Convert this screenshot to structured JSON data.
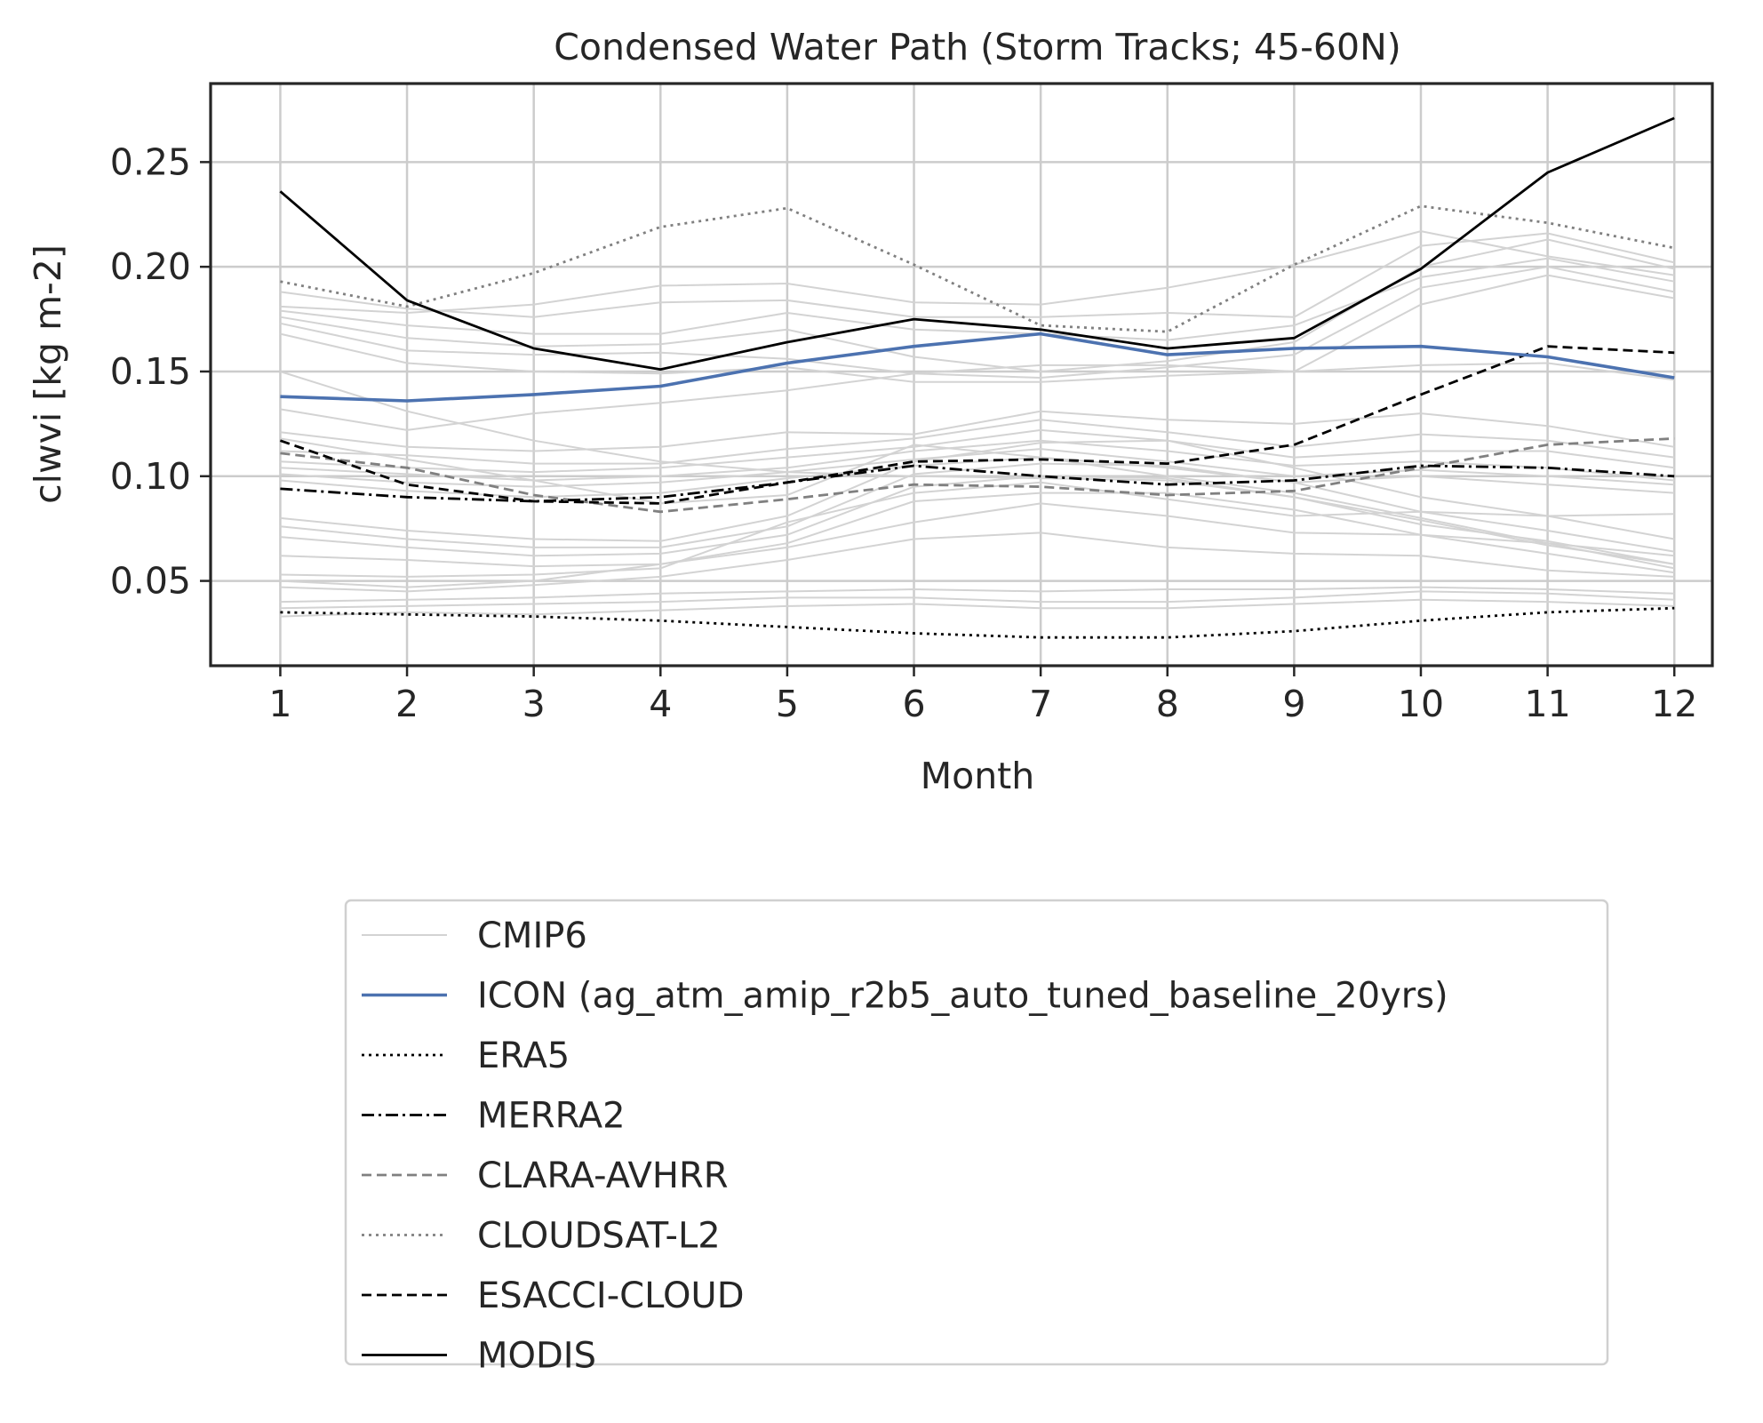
{
  "chart_data": {
    "type": "line",
    "title": "Condensed Water Path (Storm Tracks; 45-60N)",
    "xlabel": "Month",
    "ylabel": "clwvi [kg m-2]",
    "x": [
      1,
      2,
      3,
      4,
      5,
      6,
      7,
      8,
      9,
      10,
      11,
      12
    ],
    "x_ticks": [
      "1",
      "2",
      "3",
      "4",
      "5",
      "6",
      "7",
      "8",
      "9",
      "10",
      "11",
      "12"
    ],
    "y_ticks": [
      "0.05",
      "0.10",
      "0.15",
      "0.20",
      "0.25"
    ],
    "xlim": [
      0.45,
      12.3
    ],
    "ylim": [
      0.0095,
      0.2875
    ],
    "grid": true,
    "legend_position": "below plot",
    "series": [
      {
        "name": "CMIP6",
        "color": "#d3d3d3",
        "dash": "solid",
        "values": [
          0.188,
          0.18,
          0.176,
          0.183,
          0.184,
          0.176,
          0.176,
          0.178,
          0.176,
          0.21,
          0.216,
          0.202
        ]
      },
      {
        "name": "ICON (ag_atm_amip_r2b5_auto_tuned_baseline_20yrs)",
        "color": "#4c72b0",
        "dash": "solid",
        "values": [
          0.138,
          0.136,
          0.139,
          0.143,
          0.154,
          0.162,
          0.168,
          0.158,
          0.161,
          0.162,
          0.157,
          0.147
        ]
      },
      {
        "name": "ERA5",
        "color": "#000000",
        "dash": "dotted",
        "values": [
          0.035,
          0.034,
          0.033,
          0.031,
          0.028,
          0.025,
          0.023,
          0.023,
          0.026,
          0.031,
          0.035,
          0.037
        ]
      },
      {
        "name": "MERRA2",
        "color": "#000000",
        "dash": "dashdot",
        "values": [
          0.094,
          0.09,
          0.088,
          0.09,
          0.097,
          0.105,
          0.1,
          0.096,
          0.098,
          0.105,
          0.104,
          0.1
        ]
      },
      {
        "name": "CLARA-AVHRR",
        "color": "#808080",
        "dash": "dashed",
        "values": [
          0.111,
          0.104,
          0.091,
          0.083,
          0.089,
          0.096,
          0.095,
          0.091,
          0.093,
          0.104,
          0.115,
          0.118
        ]
      },
      {
        "name": "CLOUDSAT-L2",
        "color": "#808080",
        "dash": "dotted",
        "values": [
          0.193,
          0.181,
          0.197,
          0.219,
          0.228,
          0.201,
          0.172,
          0.169,
          0.201,
          0.229,
          0.221,
          0.209
        ]
      },
      {
        "name": "ESACCI-CLOUD",
        "color": "#000000",
        "dash": "dashed",
        "values": [
          0.117,
          0.096,
          0.088,
          0.087,
          0.097,
          0.107,
          0.108,
          0.106,
          0.115,
          0.139,
          0.162,
          0.159
        ]
      },
      {
        "name": "MODIS",
        "color": "#000000",
        "dash": "solid",
        "values": [
          0.236,
          0.184,
          0.161,
          0.151,
          0.164,
          0.175,
          0.17,
          0.161,
          0.166,
          0.199,
          0.245,
          0.271
        ]
      }
    ],
    "cmip6_members": [
      [
        0.188,
        0.18,
        0.176,
        0.183,
        0.184,
        0.176,
        0.176,
        0.178,
        0.176,
        0.21,
        0.216,
        0.202
      ],
      [
        0.181,
        0.178,
        0.182,
        0.191,
        0.192,
        0.183,
        0.182,
        0.19,
        0.201,
        0.217,
        0.205,
        0.196
      ],
      [
        0.179,
        0.172,
        0.168,
        0.168,
        0.178,
        0.17,
        0.168,
        0.165,
        0.172,
        0.195,
        0.204,
        0.193
      ],
      [
        0.176,
        0.166,
        0.162,
        0.163,
        0.17,
        0.157,
        0.15,
        0.155,
        0.164,
        0.2,
        0.213,
        0.199
      ],
      [
        0.173,
        0.16,
        0.158,
        0.159,
        0.156,
        0.149,
        0.147,
        0.152,
        0.158,
        0.19,
        0.2,
        0.188
      ],
      [
        0.168,
        0.154,
        0.15,
        0.149,
        0.152,
        0.145,
        0.145,
        0.148,
        0.15,
        0.182,
        0.196,
        0.185
      ],
      [
        0.132,
        0.122,
        0.13,
        0.135,
        0.141,
        0.149,
        0.153,
        0.153,
        0.15,
        0.153,
        0.154,
        0.146
      ],
      [
        0.121,
        0.114,
        0.112,
        0.114,
        0.121,
        0.12,
        0.131,
        0.127,
        0.125,
        0.13,
        0.124,
        0.114
      ],
      [
        0.112,
        0.11,
        0.106,
        0.106,
        0.113,
        0.118,
        0.127,
        0.121,
        0.114,
        0.12,
        0.117,
        0.109
      ],
      [
        0.107,
        0.104,
        0.102,
        0.104,
        0.109,
        0.114,
        0.122,
        0.117,
        0.109,
        0.112,
        0.112,
        0.104
      ],
      [
        0.104,
        0.101,
        0.098,
        0.1,
        0.104,
        0.112,
        0.117,
        0.112,
        0.105,
        0.107,
        0.104,
        0.098
      ],
      [
        0.101,
        0.097,
        0.095,
        0.097,
        0.102,
        0.108,
        0.113,
        0.107,
        0.1,
        0.103,
        0.1,
        0.096
      ],
      [
        0.098,
        0.093,
        0.09,
        0.092,
        0.099,
        0.105,
        0.109,
        0.104,
        0.097,
        0.1,
        0.096,
        0.092
      ],
      [
        0.15,
        0.131,
        0.117,
        0.107,
        0.102,
        0.1,
        0.099,
        0.098,
        0.09,
        0.079,
        0.067,
        0.058
      ],
      [
        0.118,
        0.108,
        0.098,
        0.087,
        0.091,
        0.115,
        0.109,
        0.1,
        0.092,
        0.08,
        0.068,
        0.056
      ],
      [
        0.08,
        0.074,
        0.07,
        0.069,
        0.081,
        0.107,
        0.116,
        0.117,
        0.104,
        0.09,
        0.081,
        0.07
      ],
      [
        0.076,
        0.07,
        0.066,
        0.066,
        0.076,
        0.101,
        0.106,
        0.105,
        0.097,
        0.083,
        0.074,
        0.064
      ],
      [
        0.071,
        0.066,
        0.062,
        0.063,
        0.072,
        0.095,
        0.1,
        0.099,
        0.09,
        0.077,
        0.069,
        0.058
      ],
      [
        0.062,
        0.06,
        0.057,
        0.058,
        0.068,
        0.088,
        0.092,
        0.092,
        0.084,
        0.072,
        0.063,
        0.054
      ],
      [
        0.053,
        0.052,
        0.053,
        0.056,
        0.078,
        0.092,
        0.097,
        0.089,
        0.081,
        0.083,
        0.081,
        0.082
      ],
      [
        0.05,
        0.047,
        0.05,
        0.058,
        0.066,
        0.078,
        0.087,
        0.081,
        0.073,
        0.072,
        0.068,
        0.062
      ],
      [
        0.047,
        0.045,
        0.048,
        0.052,
        0.06,
        0.07,
        0.073,
        0.066,
        0.063,
        0.062,
        0.055,
        0.052
      ],
      [
        0.04,
        0.041,
        0.042,
        0.044,
        0.045,
        0.046,
        0.045,
        0.046,
        0.046,
        0.047,
        0.046,
        0.044
      ],
      [
        0.037,
        0.038,
        0.039,
        0.04,
        0.042,
        0.042,
        0.04,
        0.04,
        0.042,
        0.045,
        0.044,
        0.041
      ],
      [
        0.033,
        0.035,
        0.034,
        0.036,
        0.038,
        0.039,
        0.037,
        0.037,
        0.039,
        0.041,
        0.04,
        0.038
      ]
    ]
  }
}
